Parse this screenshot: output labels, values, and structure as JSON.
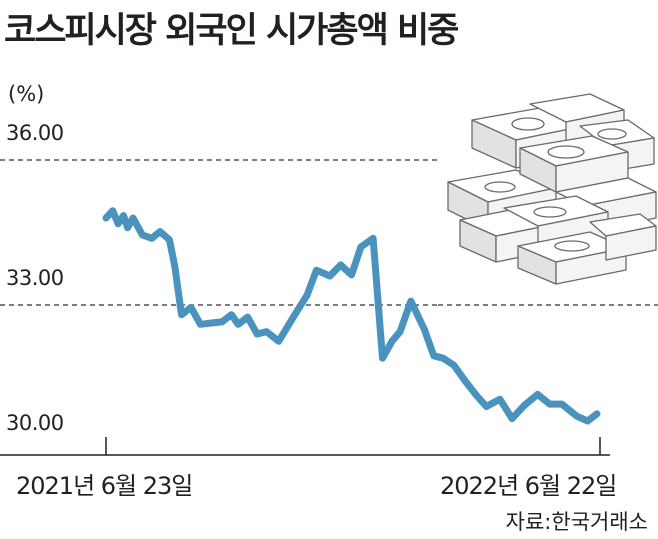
{
  "chart_data": {
    "type": "line",
    "title": "코스피시장 외국인 시가총액 비중",
    "ylabel": "(%)",
    "yticks": [
      "36.00",
      "33.00",
      "30.00"
    ],
    "ylim": [
      30,
      36
    ],
    "xticks": [
      "2021년 6월 23일",
      "2022년 6월 22일"
    ],
    "source": "자료:한국거래소",
    "color": "#4a93bf",
    "gridlines": "dashed at 33.00 and 36.00",
    "series": [
      {
        "x": [
          "2021-06-23",
          "2021-06-28",
          "2021-07-02",
          "2021-07-06",
          "2021-07-09",
          "2021-07-13",
          "2021-07-20",
          "2021-07-27",
          "2021-08-02",
          "2021-08-09",
          "2021-08-13",
          "2021-08-18",
          "2021-08-25",
          "2021-09-01",
          "2021-09-10",
          "2021-09-17",
          "2021-09-24",
          "2021-09-29",
          "2021-10-06",
          "2021-10-13",
          "2021-10-20",
          "2021-10-29",
          "2021-11-10",
          "2021-11-19",
          "2021-11-26",
          "2021-12-06",
          "2021-12-14",
          "2021-12-22",
          "2021-12-29",
          "2022-01-07",
          "2022-01-14",
          "2022-01-21",
          "2022-01-27",
          "2022-02-04",
          "2022-02-14",
          "2022-02-21",
          "2022-02-28",
          "2022-03-08",
          "2022-03-17",
          "2022-03-25",
          "2022-04-01",
          "2022-04-11",
          "2022-04-20",
          "2022-04-29",
          "2022-05-09",
          "2022-05-18",
          "2022-05-27",
          "2022-06-07",
          "2022-06-15",
          "2022-06-22"
        ],
        "values": [
          34.8,
          34.95,
          34.68,
          34.85,
          34.6,
          34.8,
          34.45,
          34.38,
          34.52,
          34.35,
          33.8,
          32.8,
          32.95,
          32.6,
          32.63,
          32.65,
          32.8,
          32.6,
          32.75,
          32.4,
          32.45,
          32.25,
          32.8,
          33.2,
          33.72,
          33.6,
          33.83,
          33.62,
          34.2,
          34.38,
          31.9,
          32.25,
          32.45,
          33.08,
          32.5,
          31.95,
          31.9,
          31.75,
          31.4,
          31.12,
          30.9,
          31.05,
          30.65,
          30.92,
          31.15,
          30.95,
          30.95,
          30.7,
          30.6,
          30.75
        ]
      }
    ]
  }
}
